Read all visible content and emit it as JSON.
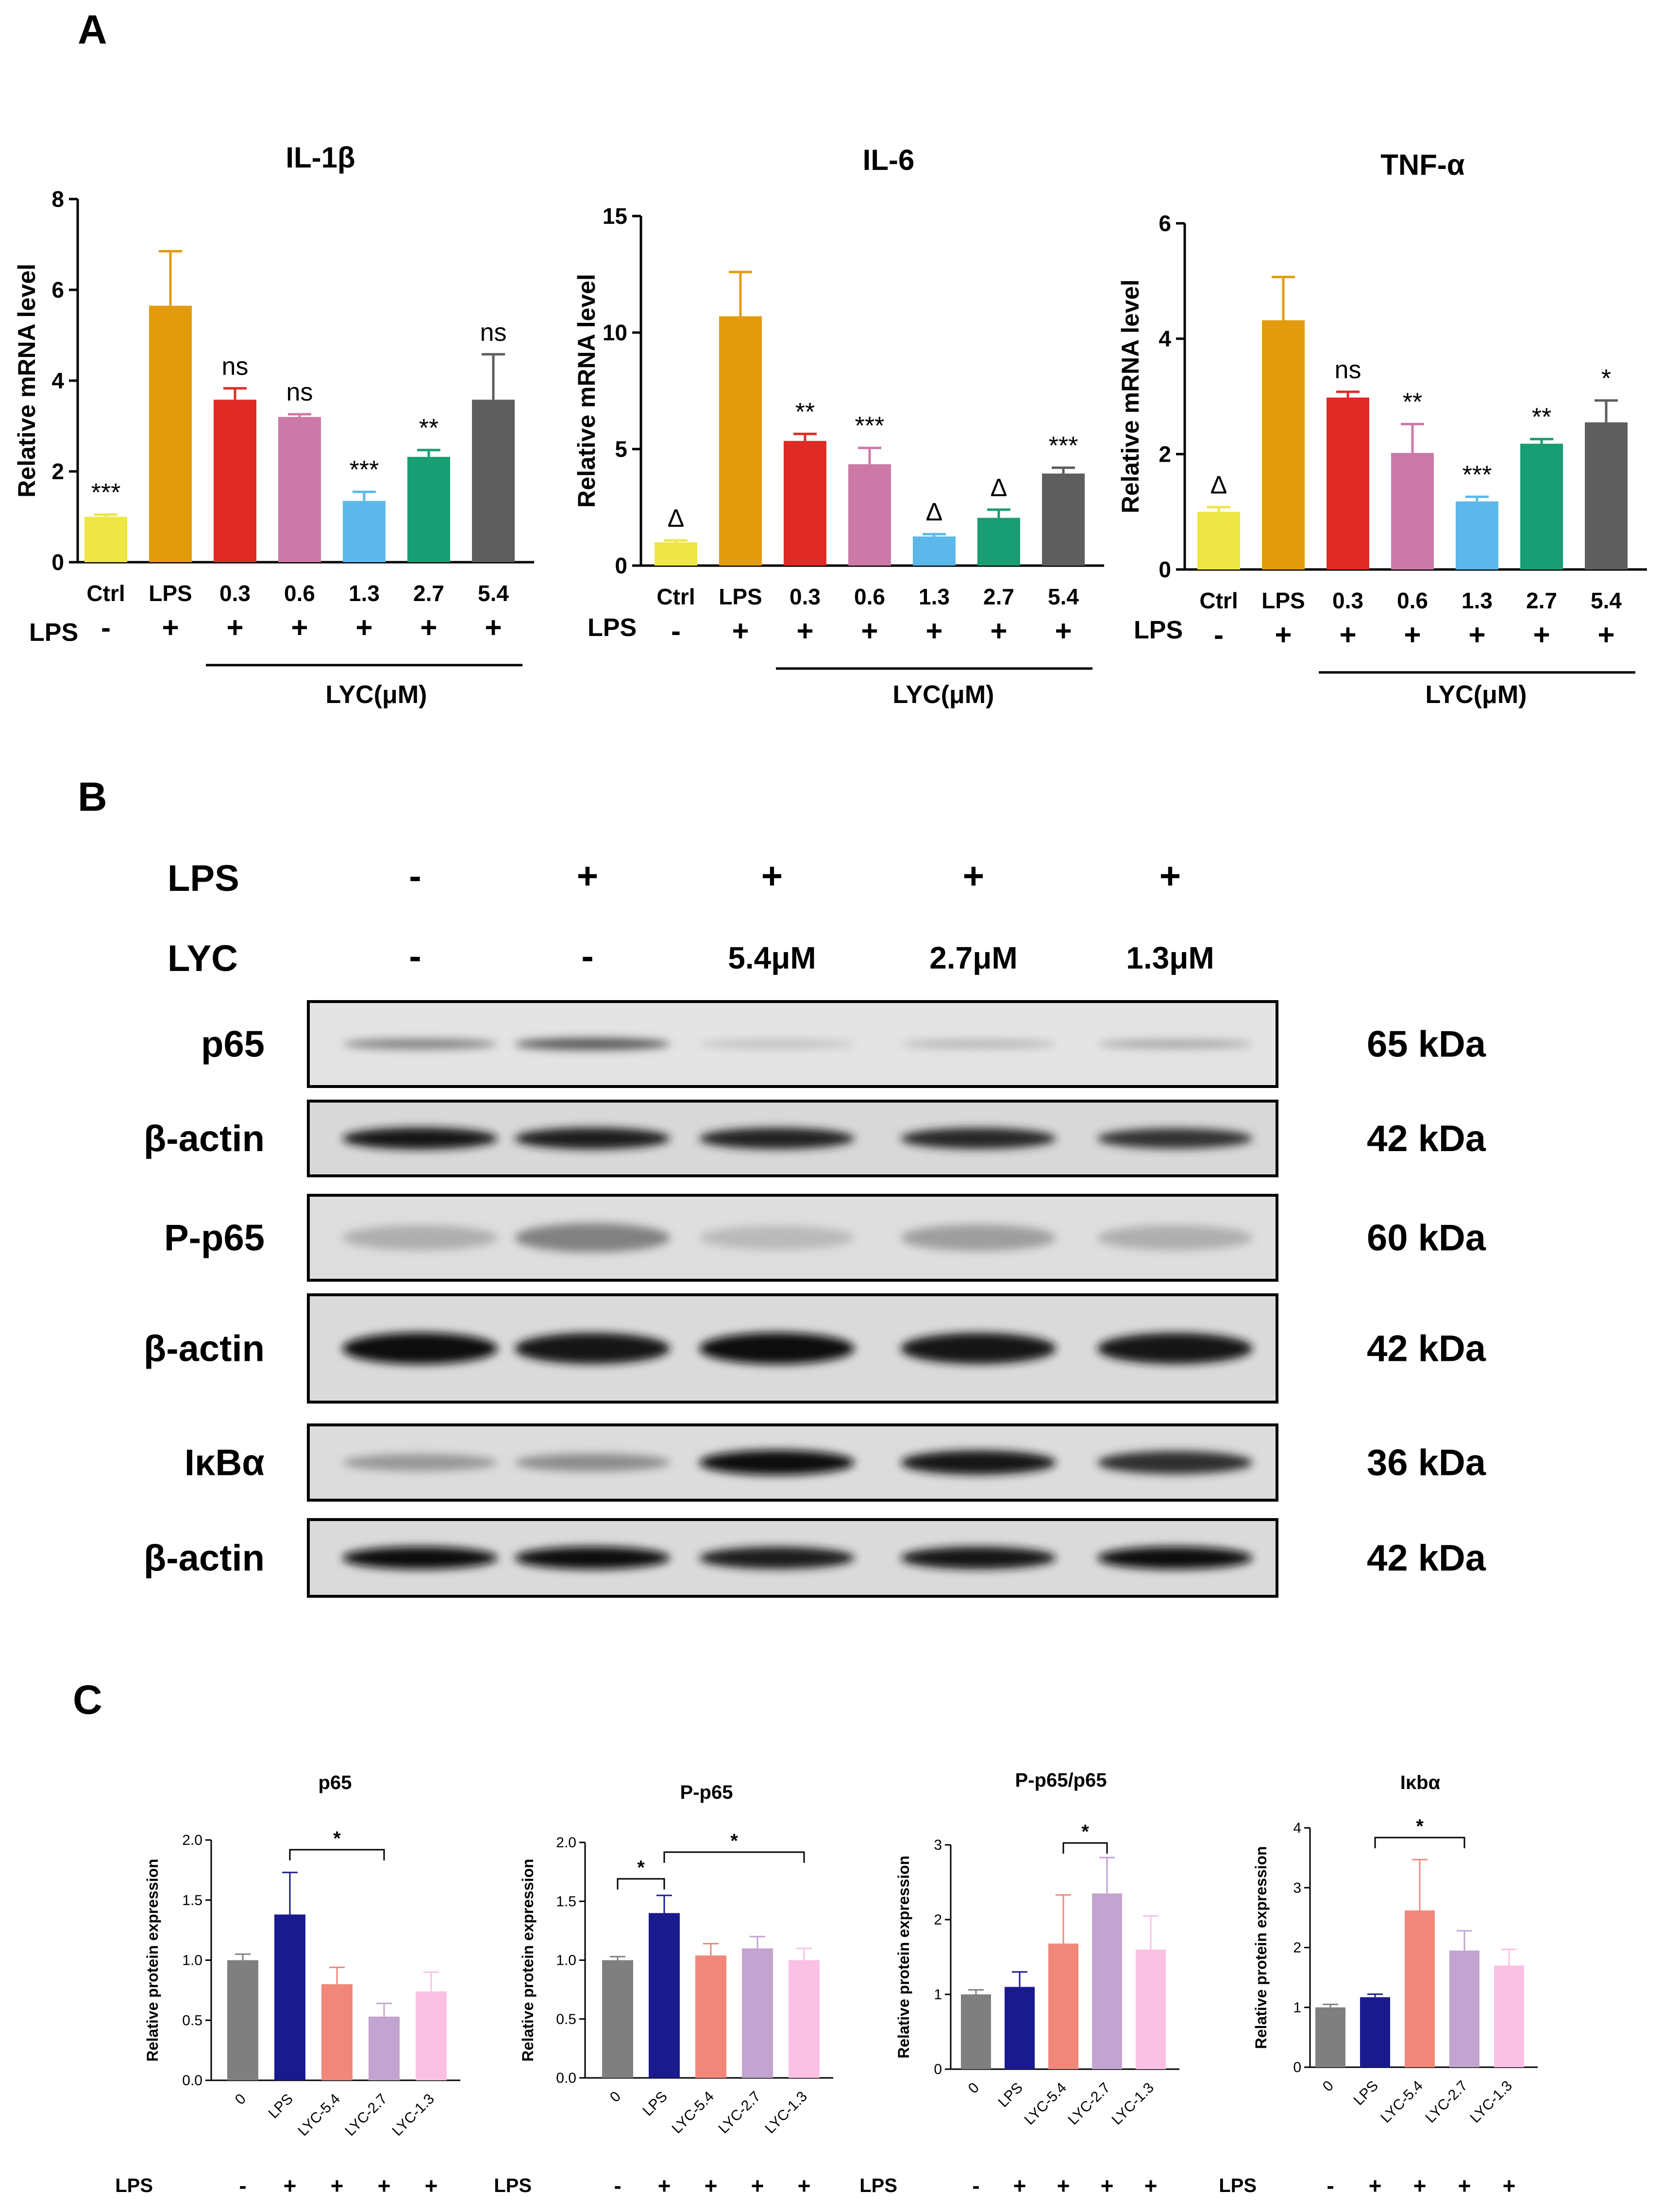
{
  "panels": {
    "a": "A",
    "b": "B",
    "c": "C"
  },
  "panel_a_rows": {
    "lps_label": "LPS",
    "lps_signs": [
      "-",
      "+",
      "+",
      "+",
      "+",
      "+",
      "+"
    ],
    "lyc_label": "LYC(μM)"
  },
  "panel_b": {
    "lps_label": "LPS",
    "lyc_label": "LYC",
    "lps_signs": [
      "-",
      "+",
      "+",
      "+",
      "+"
    ],
    "lyc_values": [
      "-",
      "-",
      "5.4μM",
      "2.7μM",
      "1.3μM"
    ],
    "blots": [
      {
        "name": "p65",
        "kda": "65 kDa",
        "intensity": [
          0.45,
          0.65,
          0.18,
          0.22,
          0.28
        ],
        "thickness": 0.5,
        "bg": "#e4e4e4"
      },
      {
        "name": "β-actin",
        "kda": "42 kDa",
        "intensity": [
          0.92,
          0.9,
          0.88,
          0.86,
          0.8
        ],
        "thickness": 0.9,
        "bg": "#d8d8d8"
      },
      {
        "name": "P-p65",
        "kda": "60 kDa",
        "intensity": [
          0.25,
          0.45,
          0.2,
          0.32,
          0.25
        ],
        "thickness": 1.4,
        "bg": "#dedede"
      },
      {
        "name": "β-actin",
        "kda": "42 kDa",
        "intensity": [
          0.95,
          0.92,
          0.95,
          0.92,
          0.92
        ],
        "thickness": 0.9,
        "bg": "#dadada"
      },
      {
        "name": "IκBα",
        "kda": "36 kDa",
        "intensity": [
          0.35,
          0.4,
          0.98,
          0.92,
          0.82
        ],
        "thickness": 1.0,
        "bg": "#dcdcdc"
      },
      {
        "name": "β-actin",
        "kda": "42 kDa",
        "intensity": [
          0.95,
          0.95,
          0.9,
          0.93,
          0.95
        ],
        "thickness": 0.9,
        "bg": "#dadada"
      }
    ]
  },
  "panel_c_rows": {
    "lps_label": "LPS",
    "lps_signs": [
      "-",
      "+",
      "+",
      "+",
      "+"
    ]
  },
  "chart_data": [
    {
      "type": "bar",
      "panel": "A",
      "title": "IL-1β",
      "ylabel": "Relative mRNA level",
      "categories": [
        "Ctrl",
        "LPS",
        "0.3",
        "0.6",
        "1.3",
        "2.7",
        "5.4"
      ],
      "values": [
        1.0,
        5.65,
        3.58,
        3.2,
        1.35,
        2.32,
        3.58
      ],
      "errors": [
        0.05,
        1.2,
        0.25,
        0.06,
        0.2,
        0.15,
        1.0
      ],
      "annotations": [
        "***",
        "",
        "ns",
        "ns",
        "***",
        "**",
        "ns"
      ],
      "ylim": [
        0,
        8
      ],
      "yticks": [
        0,
        2,
        4,
        6,
        8
      ],
      "colors": [
        "#ede645",
        "#e39b0e",
        "#e02a26",
        "#cc79a7",
        "#5cb8ea",
        "#199d72",
        "#5e5e5e"
      ]
    },
    {
      "type": "bar",
      "panel": "A",
      "title": "IL-6",
      "ylabel": "Relative mRNA level",
      "categories": [
        "Ctrl",
        "LPS",
        "0.3",
        "0.6",
        "1.3",
        "2.7",
        "5.4"
      ],
      "values": [
        1.0,
        10.7,
        5.35,
        4.35,
        1.25,
        2.05,
        3.95
      ],
      "errors": [
        0.08,
        1.9,
        0.3,
        0.7,
        0.1,
        0.35,
        0.25
      ],
      "annotations": [
        "Δ",
        "",
        "**",
        "***",
        "Δ",
        "Δ",
        "***"
      ],
      "ylim": [
        0,
        15
      ],
      "yticks": [
        0,
        5,
        10,
        15
      ],
      "colors": [
        "#ede645",
        "#e39b0e",
        "#e02a26",
        "#cc79a7",
        "#5cb8ea",
        "#199d72",
        "#5e5e5e"
      ]
    },
    {
      "type": "bar",
      "panel": "A",
      "title": "TNF-α",
      "ylabel": "Relative mRNA level",
      "categories": [
        "Ctrl",
        "LPS",
        "0.3",
        "0.6",
        "1.3",
        "2.7",
        "5.4"
      ],
      "values": [
        1.0,
        4.32,
        2.98,
        2.02,
        1.18,
        2.18,
        2.55
      ],
      "errors": [
        0.08,
        0.75,
        0.1,
        0.5,
        0.08,
        0.08,
        0.38
      ],
      "annotations": [
        "Δ",
        "",
        "ns",
        "**",
        "***",
        "**",
        "*"
      ],
      "ylim": [
        0,
        6
      ],
      "yticks": [
        0,
        2,
        4,
        6
      ],
      "colors": [
        "#ede645",
        "#e39b0e",
        "#e02a26",
        "#cc79a7",
        "#5cb8ea",
        "#199d72",
        "#5e5e5e"
      ]
    },
    {
      "type": "bar",
      "panel": "C",
      "title": "p65",
      "ylabel": "Relative protein expression",
      "categories": [
        "0",
        "LPS",
        "LYC-5.4",
        "LYC-2.7",
        "LYC-1.3"
      ],
      "values": [
        1.0,
        1.38,
        0.8,
        0.53,
        0.74
      ],
      "errors": [
        0.05,
        0.35,
        0.14,
        0.11,
        0.16
      ],
      "ylim": [
        0,
        2.0
      ],
      "yticks": [
        0.0,
        0.5,
        1.0,
        1.5,
        2.0
      ],
      "brackets": [
        {
          "from": 1,
          "to": 3,
          "label": "*"
        }
      ],
      "colors": [
        "#7f7f7f",
        "#1a1a8f",
        "#f0877a",
        "#c3a3cf",
        "#fbc1e5"
      ]
    },
    {
      "type": "bar",
      "panel": "C",
      "title": "P-p65",
      "ylabel": "Relative protein expression",
      "categories": [
        "0",
        "LPS",
        "LYC-5.4",
        "LYC-2.7",
        "LYC-1.3"
      ],
      "values": [
        1.0,
        1.4,
        1.04,
        1.1,
        1.0
      ],
      "errors": [
        0.03,
        0.15,
        0.1,
        0.1,
        0.1
      ],
      "ylim": [
        0,
        2.0
      ],
      "yticks": [
        0.0,
        0.5,
        1.0,
        1.5,
        2.0
      ],
      "brackets": [
        {
          "from": 0,
          "to": 1,
          "label": "*"
        },
        {
          "from": 1,
          "to": 4,
          "label": "*"
        }
      ],
      "colors": [
        "#7f7f7f",
        "#1a1a8f",
        "#f0877a",
        "#c3a3cf",
        "#fbc1e5"
      ]
    },
    {
      "type": "bar",
      "panel": "C",
      "title": "P-p65/p65",
      "ylabel": "Relative protein expression",
      "categories": [
        "0",
        "LPS",
        "LYC-5.4",
        "LYC-2.7",
        "LYC-1.3"
      ],
      "values": [
        1.0,
        1.1,
        1.68,
        2.35,
        1.6
      ],
      "errors": [
        0.06,
        0.2,
        0.65,
        0.48,
        0.45
      ],
      "ylim": [
        0,
        3
      ],
      "yticks": [
        0,
        1,
        2,
        3
      ],
      "brackets": [
        {
          "from": 2,
          "to": 3,
          "label": "*"
        }
      ],
      "colors": [
        "#7f7f7f",
        "#1a1a8f",
        "#f0877a",
        "#c3a3cf",
        "#fbc1e5"
      ]
    },
    {
      "type": "bar",
      "panel": "C",
      "title": "Iκbα",
      "ylabel": "Relative protein expression",
      "categories": [
        "0",
        "LPS",
        "LYC-5.4",
        "LYC-2.7",
        "LYC-1.3"
      ],
      "values": [
        1.0,
        1.17,
        2.62,
        1.95,
        1.7
      ],
      "errors": [
        0.05,
        0.05,
        0.85,
        0.33,
        0.27
      ],
      "ylim": [
        0,
        4
      ],
      "yticks": [
        0,
        1,
        2,
        3,
        4
      ],
      "brackets": [
        {
          "from": 1,
          "to": 3,
          "label": "*"
        }
      ],
      "colors": [
        "#7f7f7f",
        "#1a1a8f",
        "#f0877a",
        "#c3a3cf",
        "#fbc1e5"
      ]
    }
  ]
}
